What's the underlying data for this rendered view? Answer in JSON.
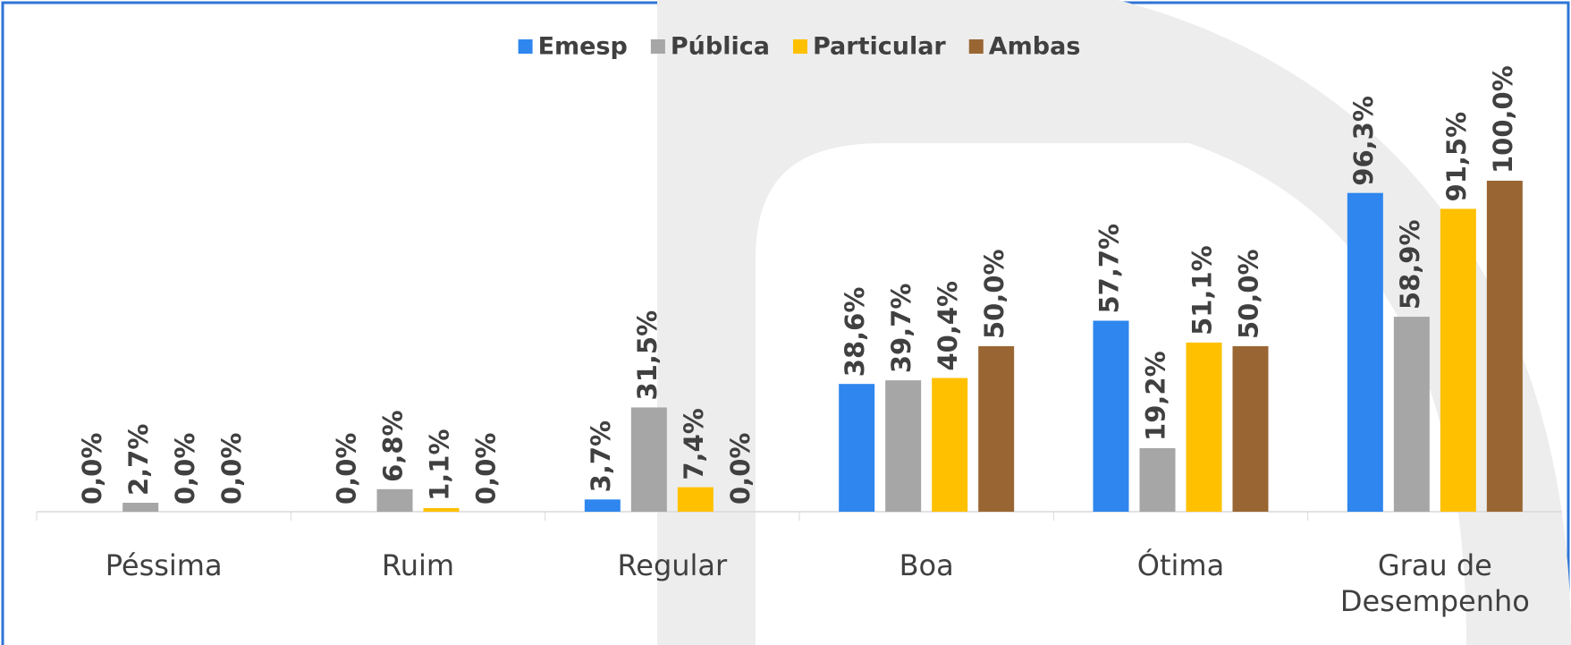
{
  "chart_data": {
    "type": "bar",
    "categories": [
      "Péssima",
      "Ruim",
      "Regular",
      "Boa",
      "Ótima",
      "Grau de Desempenho"
    ],
    "series": [
      {
        "name": "Emesp",
        "color": "#2E86EE",
        "values": [
          0,
          0,
          3.7,
          38.6,
          57.7,
          96.3
        ],
        "value_labels": [
          "0,0%",
          "0,0%",
          "3,7%",
          "38,6%",
          "57,7%",
          "96,3%"
        ]
      },
      {
        "name": "Pública",
        "color": "#A6A6A6",
        "values": [
          2.7,
          6.8,
          31.5,
          39.7,
          19.2,
          58.9
        ],
        "value_labels": [
          "2,7%",
          "6,8%",
          "31,5%",
          "39,7%",
          "19,2%",
          "58,9%"
        ]
      },
      {
        "name": "Particular",
        "color": "#FFC000",
        "values": [
          0,
          1.1,
          7.4,
          40.4,
          51.1,
          91.5
        ],
        "value_labels": [
          "0,0%",
          "1,1%",
          "7,4%",
          "40,4%",
          "51,1%",
          "91,5%"
        ]
      },
      {
        "name": "Ambas",
        "color": "#996633",
        "values": [
          0,
          0,
          0,
          50,
          50,
          100
        ],
        "value_labels": [
          "0,0%",
          "0,0%",
          "0,0%",
          "50,0%",
          "50,0%",
          "100,0%"
        ]
      }
    ],
    "ylim": [
      0,
      100
    ],
    "legend": "top"
  }
}
